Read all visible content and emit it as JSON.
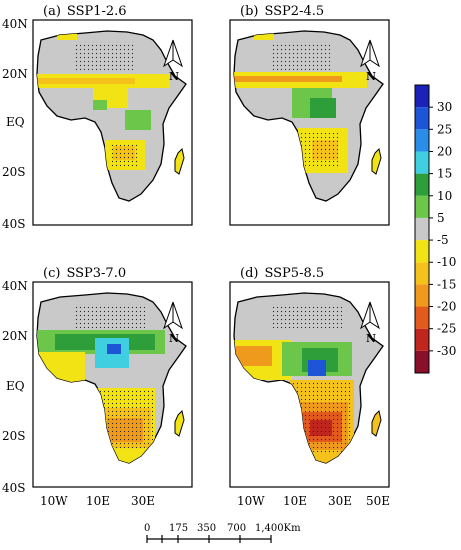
{
  "panels": [
    {
      "id": "a",
      "label": "(a)",
      "scenario": "SSP1-2.6"
    },
    {
      "id": "b",
      "label": "(b)",
      "scenario": "SSP2-4.5"
    },
    {
      "id": "c",
      "label": "(c)",
      "scenario": "SSP3-7.0"
    },
    {
      "id": "d",
      "label": "(d)",
      "scenario": "SSP5-8.5"
    }
  ],
  "lat_ticks_top": [
    "40N",
    "20N",
    "EQ",
    "20S",
    "40S"
  ],
  "lat_ticks_bottom": [
    "40N",
    "20N",
    "EQ",
    "20S",
    "40S"
  ],
  "lon_ticks_left": [
    "10W",
    "10E",
    "30E"
  ],
  "lon_ticks_right": [
    "10W",
    "10E",
    "30E",
    "50E"
  ],
  "north_arrow": {
    "letter": "N",
    "icon": "north-arrow-icon"
  },
  "colorbar": {
    "labels": [
      "30",
      "25",
      "20",
      "15",
      "10",
      "5",
      "-5",
      "-10",
      "-15",
      "-20",
      "-25",
      "-30"
    ],
    "colors": [
      "#1a22b8",
      "#1c55d6",
      "#2a8de8",
      "#3fcfe0",
      "#2e9e3a",
      "#6cc64a",
      "#c9c9c9",
      "#f2e414",
      "#f4c21a",
      "#f09a1d",
      "#e25a1c",
      "#c0261d",
      "#8a0f2a"
    ]
  },
  "scale_bar": {
    "labels": [
      "0",
      "175",
      "350",
      "700",
      "1,400"
    ],
    "unit": "Km"
  },
  "legend_colors": {
    "land_default": "#c9c9c9",
    "frame": "#000000"
  }
}
